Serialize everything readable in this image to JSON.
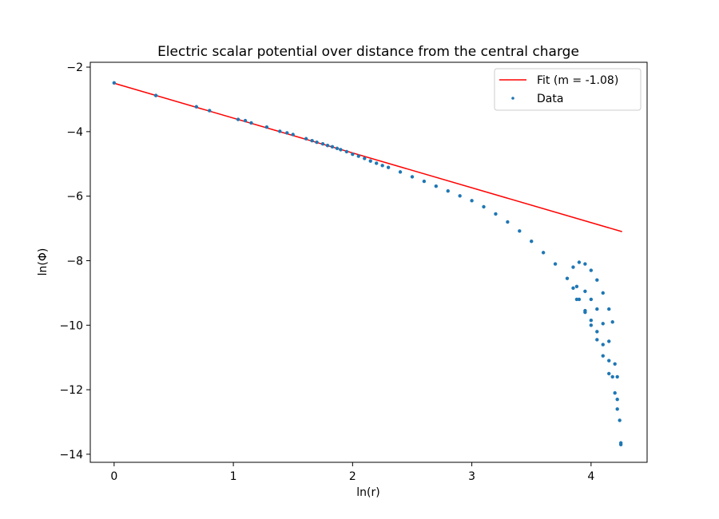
{
  "chart_data": {
    "type": "scatter",
    "title": "Electric scalar potential over distance from the central charge",
    "xlabel": "ln(r)",
    "ylabel": "ln(Φ)",
    "xlim": [
      -0.2,
      4.47
    ],
    "ylim": [
      -14.25,
      -1.85
    ],
    "xticks": [
      0,
      1,
      2,
      3,
      4
    ],
    "yticks": [
      -2,
      -4,
      -6,
      -8,
      -10,
      -12,
      -14
    ],
    "grid": false,
    "legend_position": "top-right",
    "colors": {
      "fit": "#ff0000",
      "data": "#1f77b4"
    },
    "series": [
      {
        "name": "Fit (m = -1.08)",
        "kind": "line",
        "slope": -1.08,
        "x": [
          0.0,
          4.26
        ],
        "y": [
          -2.5,
          -7.1
        ]
      },
      {
        "name": "Data",
        "kind": "scatter",
        "x": [
          0.0,
          0.35,
          0.69,
          0.8,
          1.04,
          1.1,
          1.15,
          1.28,
          1.39,
          1.45,
          1.5,
          1.61,
          1.66,
          1.7,
          1.75,
          1.79,
          1.83,
          1.87,
          1.9,
          1.95,
          2.0,
          2.05,
          2.1,
          2.15,
          2.2,
          2.25,
          2.3,
          2.4,
          2.5,
          2.6,
          2.7,
          2.8,
          2.9,
          3.0,
          3.1,
          3.2,
          3.3,
          3.4,
          3.5,
          3.6,
          3.7,
          3.8,
          3.85,
          3.9,
          3.95,
          4.0,
          4.05,
          4.1,
          4.15,
          4.2,
          4.22,
          4.25,
          3.85,
          3.9,
          3.95,
          4.0,
          4.05,
          4.1,
          4.15,
          4.18,
          3.88,
          3.95,
          4.0,
          4.05,
          4.1,
          4.15,
          4.2,
          4.22,
          3.88,
          3.95,
          4.0,
          4.05,
          4.1,
          4.15,
          4.18,
          4.22,
          4.24,
          4.25
        ],
        "y": [
          -2.49,
          -2.88,
          -3.23,
          -3.35,
          -3.62,
          -3.66,
          -3.73,
          -3.86,
          -3.99,
          -4.04,
          -4.09,
          -4.22,
          -4.28,
          -4.33,
          -4.38,
          -4.43,
          -4.47,
          -4.52,
          -4.56,
          -4.62,
          -4.7,
          -4.76,
          -4.83,
          -4.91,
          -4.98,
          -5.05,
          -5.11,
          -5.25,
          -5.4,
          -5.54,
          -5.69,
          -5.84,
          -5.99,
          -6.14,
          -6.33,
          -6.55,
          -6.8,
          -7.08,
          -7.4,
          -7.75,
          -8.1,
          -8.55,
          -8.85,
          -9.2,
          -9.6,
          -10.0,
          -10.45,
          -10.95,
          -11.5,
          -12.1,
          -12.6,
          -13.7,
          -8.2,
          -8.05,
          -8.1,
          -8.3,
          -8.6,
          -9.0,
          -9.5,
          -9.9,
          -8.8,
          -8.95,
          -9.2,
          -9.5,
          -9.95,
          -10.5,
          -11.2,
          -11.6,
          -9.2,
          -9.55,
          -9.85,
          -10.2,
          -10.6,
          -11.1,
          -11.6,
          -12.3,
          -12.95,
          -13.65
        ]
      }
    ]
  }
}
